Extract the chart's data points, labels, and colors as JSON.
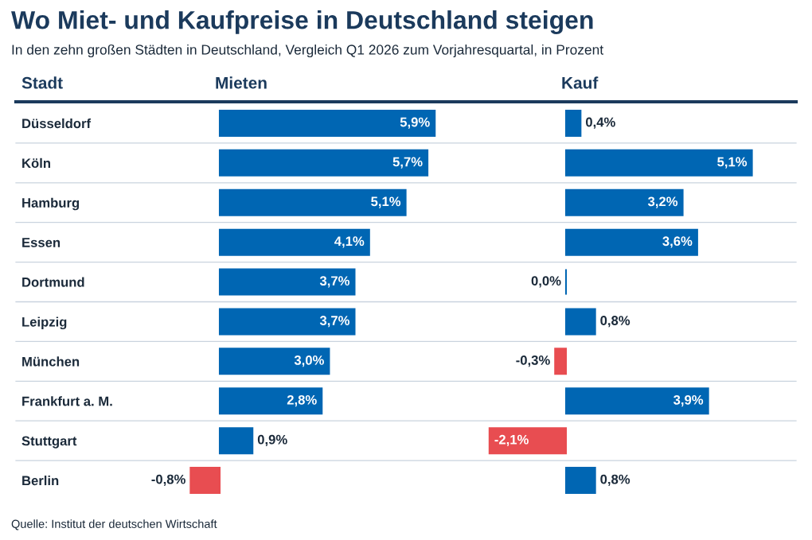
{
  "chart_data": [
    {
      "type": "bar",
      "orientation": "horizontal",
      "title": "Wo Miet- und Kaufpreise in Deutschland steigen",
      "subtitle": "In den zehn großen Städten in Deutschland, Vergleich Q1 2026 zum Vorjahresquartal, in Prozent",
      "ylabel": "Stadt",
      "xlabel": "Mieten",
      "tick_labels": "y",
      "categories": [
        "Düsseldorf",
        "Köln",
        "Hamburg",
        "Essen",
        "Dortmund",
        "Leipzig",
        "München",
        "Frankfurt a. M.",
        "Stuttgart",
        "Berlin"
      ],
      "values": [
        5.9,
        5.7,
        5.1,
        4.1,
        3.7,
        3.7,
        3.0,
        2.8,
        0.9,
        -0.8
      ],
      "colors": [
        "#0066b3",
        "#0066b3",
        "#0066b3",
        "#0066b3",
        "#0066b3",
        "#0066b3",
        "#0066b3",
        "#0066b3",
        "#0066b3",
        "#e84d51"
      ],
      "value_labels": [
        "5,9%",
        "5,7%",
        "5,1%",
        "4,1%",
        "3,7%",
        "3,7%",
        "3,0%",
        "2,8%",
        "0,9%",
        "-0,8%"
      ],
      "annotations": [
        "Quelle: Institut der deutschen Wirtschaft"
      ]
    },
    {
      "type": "bar",
      "orientation": "horizontal",
      "xlabel": "Kauf",
      "tick_labels": false,
      "categories": [
        null,
        null,
        null,
        null,
        null,
        null,
        null,
        null,
        null,
        null
      ],
      "values": [
        0.4,
        5.1,
        3.2,
        3.6,
        0.0,
        0.8,
        -0.3,
        3.9,
        -2.1,
        0.8
      ],
      "colors": [
        "#0066b3",
        "#0066b3",
        "#0066b3",
        "#0066b3",
        "#0066b3",
        "#0066b3",
        "#e84d51",
        "#0066b3",
        "#e84d51",
        "#0066b3"
      ],
      "value_labels": [
        "0,4%",
        "5,1%",
        "3,2%",
        "3,6%",
        "0,0%",
        "0,8%",
        "-0,3%",
        "3,9%",
        "-2,1%",
        "0,8%"
      ]
    }
  ]
}
